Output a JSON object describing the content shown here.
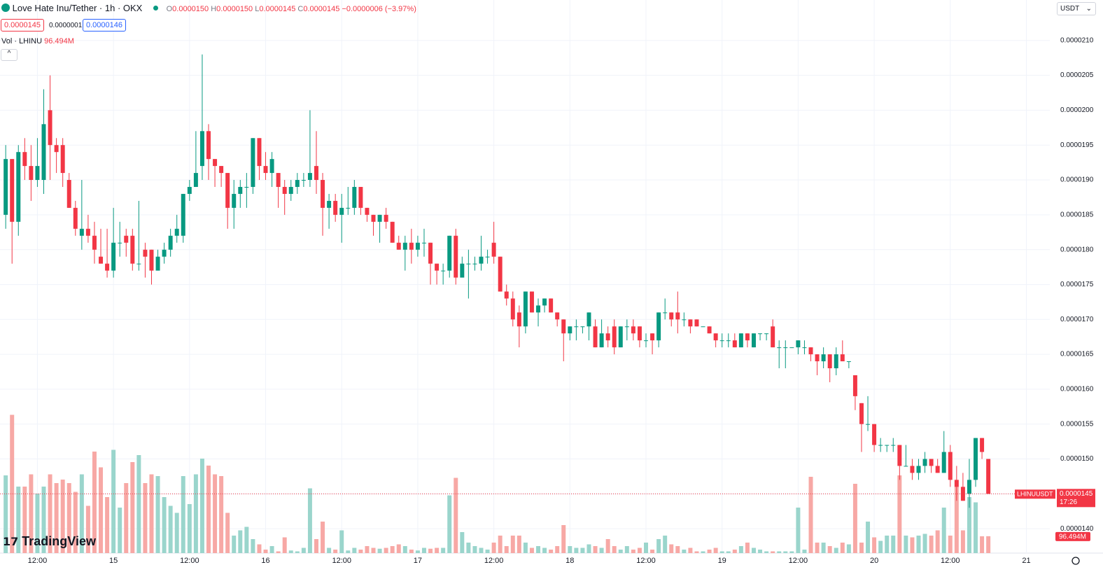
{
  "header": {
    "symbol": "Love Hate Inu/Tether · 1h · OKX",
    "ohlc": [
      {
        "label": "O",
        "value": "0.0000150"
      },
      {
        "label": "H",
        "value": "0.0000150"
      },
      {
        "label": "L",
        "value": "0.0000145"
      },
      {
        "label": "C",
        "value": "0.0000145"
      }
    ],
    "change": "−0.0000006 (−3.97%)",
    "bid": "0.0000145",
    "spread": "0.0000001",
    "ask": "0.0000146",
    "volume_title": "Vol · LHINU",
    "volume_value": "96.494M",
    "currency": "USDT",
    "logo": "TradingView"
  },
  "chart_data": {
    "type": "candlestick",
    "open": [
      1.85e-05,
      1.93e-05,
      1.84e-05,
      1.94e-05,
      1.92e-05,
      1.9e-05,
      1.9e-05,
      2e-05,
      1.95e-05,
      1.95e-05,
      1.9e-05,
      1.86e-05,
      1.82e-05,
      1.83e-05,
      1.82e-05,
      1.79e-05,
      1.78e-05,
      1.77e-05,
      1.81e-05,
      1.82e-05,
      1.82e-05,
      1.78e-05,
      1.8e-05,
      1.8e-05,
      1.77e-05,
      1.79e-05,
      1.8e-05,
      1.82e-05,
      1.82e-05,
      1.88e-05,
      1.89e-05,
      1.92e-05,
      1.97e-05,
      1.93e-05,
      1.92e-05,
      1.91e-05,
      1.86e-05,
      1.88e-05,
      1.89e-05,
      1.89e-05,
      1.96e-05,
      1.92e-05,
      1.91e-05,
      1.91e-05,
      1.89e-05,
      1.88e-05,
      1.89e-05,
      1.9e-05,
      1.9e-05,
      1.92e-05,
      1.9e-05,
      1.86e-05,
      1.87e-05,
      1.85e-05,
      1.86e-05,
      1.86e-05,
      1.89e-05,
      1.86e-05,
      1.85e-05,
      1.84e-05,
      1.85e-05,
      1.84e-05,
      1.81e-05,
      1.8e-05,
      1.81e-05,
      1.8e-05,
      1.81e-05,
      1.81e-05,
      1.78e-05,
      1.77e-05,
      1.77e-05,
      1.82e-05,
      1.76e-05,
      1.78e-05,
      1.78e-05,
      1.78e-05,
      1.79e-05,
      1.81e-05,
      1.79e-05,
      1.74e-05,
      1.73e-05,
      1.71e-05,
      1.69e-05,
      1.74e-05,
      1.71e-05,
      1.72e-05,
      1.73e-05,
      1.71e-05,
      1.7e-05,
      1.68e-05,
      1.69e-05,
      1.69e-05,
      1.69e-05,
      1.69e-05,
      1.66e-05,
      1.68e-05,
      1.69e-05,
      1.66e-05,
      1.69e-05,
      1.69e-05,
      1.69e-05,
      1.67e-05,
      1.68e-05,
      1.67e-05,
      1.71e-05,
      1.71e-05,
      1.71e-05,
      1.7e-05,
      1.7e-05,
      1.7e-05,
      1.69e-05,
      1.69e-05,
      1.68e-05,
      1.67e-05,
      1.67e-05,
      1.67e-05,
      1.66e-05,
      1.68e-05,
      1.66e-05,
      1.68e-05,
      1.68e-05,
      1.69e-05,
      1.66e-05,
      1.66e-05,
      1.66e-05,
      1.66e-05,
      1.66e-05,
      1.66e-05,
      1.65e-05,
      1.64e-05,
      1.65e-05,
      1.63e-05,
      1.65e-05,
      1.64e-05,
      1.62e-05,
      1.58e-05,
      1.55e-05,
      1.55e-05,
      1.52e-05,
      1.52e-05,
      1.52e-05,
      1.52e-05,
      1.49e-05,
      1.49e-05,
      1.48e-05,
      1.49e-05,
      1.5e-05,
      1.49e-05,
      1.48e-05,
      1.51e-05,
      1.47e-05,
      1.46e-05,
      1.45e-05,
      1.47e-05,
      1.53e-05,
      1.5e-05
    ],
    "high": [
      1.95e-05,
      1.93e-05,
      1.95e-05,
      1.96e-05,
      1.95e-05,
      1.96e-05,
      2.03e-05,
      2.05e-05,
      1.96e-05,
      1.96e-05,
      1.91e-05,
      1.87e-05,
      1.9e-05,
      1.85e-05,
      1.84e-05,
      1.83e-05,
      1.83e-05,
      1.86e-05,
      1.84e-05,
      1.83e-05,
      1.83e-05,
      1.87e-05,
      1.81e-05,
      1.8e-05,
      1.8e-05,
      1.81e-05,
      1.83e-05,
      1.85e-05,
      1.88e-05,
      1.9e-05,
      1.97e-05,
      2.08e-05,
      1.98e-05,
      1.93e-05,
      1.92e-05,
      1.91e-05,
      1.9e-05,
      1.9e-05,
      1.91e-05,
      1.96e-05,
      1.96e-05,
      1.94e-05,
      1.94e-05,
      1.91e-05,
      1.9e-05,
      1.9e-05,
      1.91e-05,
      1.91e-05,
      2e-05,
      1.97e-05,
      1.91e-05,
      1.88e-05,
      1.88e-05,
      1.88e-05,
      1.89e-05,
      1.9e-05,
      1.89e-05,
      1.86e-05,
      1.85e-05,
      1.85e-05,
      1.86e-05,
      1.84e-05,
      1.82e-05,
      1.82e-05,
      1.83e-05,
      1.82e-05,
      1.83e-05,
      1.81e-05,
      1.78e-05,
      1.78e-05,
      1.82e-05,
      1.83e-05,
      1.79e-05,
      1.8e-05,
      1.79e-05,
      1.82e-05,
      1.8e-05,
      1.84e-05,
      1.79e-05,
      1.75e-05,
      1.74e-05,
      1.72e-05,
      1.74e-05,
      1.74e-05,
      1.73e-05,
      1.73e-05,
      1.73e-05,
      1.71e-05,
      1.7e-05,
      1.69e-05,
      1.7e-05,
      1.69e-05,
      1.71e-05,
      1.7e-05,
      1.7e-05,
      1.69e-05,
      1.7e-05,
      1.69e-05,
      1.7e-05,
      1.7e-05,
      1.69e-05,
      1.68e-05,
      1.68e-05,
      1.71e-05,
      1.73e-05,
      1.71e-05,
      1.74e-05,
      1.71e-05,
      1.7e-05,
      1.7e-05,
      1.69e-05,
      1.69e-05,
      1.68e-05,
      1.68e-05,
      1.68e-05,
      1.68e-05,
      1.68e-05,
      1.68e-05,
      1.68e-05,
      1.68e-05,
      1.68e-05,
      1.7e-05,
      1.67e-05,
      1.67e-05,
      1.66e-05,
      1.67e-05,
      1.67e-05,
      1.66e-05,
      1.65e-05,
      1.66e-05,
      1.65e-05,
      1.66e-05,
      1.67e-05,
      1.64e-05,
      1.62e-05,
      1.58e-05,
      1.59e-05,
      1.55e-05,
      1.53e-05,
      1.52e-05,
      1.53e-05,
      1.52e-05,
      1.52e-05,
      1.5e-05,
      1.5e-05,
      1.51e-05,
      1.5e-05,
      1.5e-05,
      1.54e-05,
      1.52e-05,
      1.49e-05,
      1.48e-05,
      1.5e-05,
      1.53e-05,
      1.53e-05,
      1.5e-05
    ],
    "low": [
      1.83e-05,
      1.78e-05,
      1.82e-05,
      1.9e-05,
      1.87e-05,
      1.89e-05,
      1.88e-05,
      1.9e-05,
      1.91e-05,
      1.89e-05,
      1.86e-05,
      1.82e-05,
      1.8e-05,
      1.81e-05,
      1.78e-05,
      1.78e-05,
      1.76e-05,
      1.76e-05,
      1.79e-05,
      1.79e-05,
      1.77e-05,
      1.77e-05,
      1.76e-05,
      1.75e-05,
      1.77e-05,
      1.78e-05,
      1.79e-05,
      1.81e-05,
      1.81e-05,
      1.87e-05,
      1.89e-05,
      1.9e-05,
      1.9e-05,
      1.89e-05,
      1.89e-05,
      1.83e-05,
      1.83e-05,
      1.86e-05,
      1.86e-05,
      1.88e-05,
      1.9e-05,
      1.9e-05,
      1.89e-05,
      1.86e-05,
      1.85e-05,
      1.87e-05,
      1.88e-05,
      1.89e-05,
      1.89e-05,
      1.88e-05,
      1.82e-05,
      1.83e-05,
      1.84e-05,
      1.81e-05,
      1.85e-05,
      1.85e-05,
      1.85e-05,
      1.84e-05,
      1.82e-05,
      1.81e-05,
      1.83e-05,
      1.81e-05,
      1.8e-05,
      1.77e-05,
      1.78e-05,
      1.79e-05,
      1.79e-05,
      1.75e-05,
      1.75e-05,
      1.75e-05,
      1.76e-05,
      1.75e-05,
      1.76e-05,
      1.73e-05,
      1.77e-05,
      1.77e-05,
      1.78e-05,
      1.78e-05,
      1.74e-05,
      1.72e-05,
      1.69e-05,
      1.66e-05,
      1.68e-05,
      1.71e-05,
      1.69e-05,
      1.71e-05,
      1.71e-05,
      1.69e-05,
      1.64e-05,
      1.67e-05,
      1.67e-05,
      1.68e-05,
      1.67e-05,
      1.66e-05,
      1.66e-05,
      1.66e-05,
      1.65e-05,
      1.66e-05,
      1.67e-05,
      1.67e-05,
      1.66e-05,
      1.66e-05,
      1.65e-05,
      1.66e-05,
      1.7e-05,
      1.69e-05,
      1.68e-05,
      1.69e-05,
      1.68e-05,
      1.69e-05,
      1.69e-05,
      1.68e-05,
      1.66e-05,
      1.66e-05,
      1.66e-05,
      1.66e-05,
      1.66e-05,
      1.66e-05,
      1.66e-05,
      1.67e-05,
      1.67e-05,
      1.66e-05,
      1.63e-05,
      1.63e-05,
      1.66e-05,
      1.65e-05,
      1.65e-05,
      1.64e-05,
      1.62e-05,
      1.63e-05,
      1.61e-05,
      1.62e-05,
      1.64e-05,
      1.63e-05,
      1.57e-05,
      1.51e-05,
      1.54e-05,
      1.51e-05,
      1.51e-05,
      1.51e-05,
      1.51e-05,
      1.47e-05,
      1.49e-05,
      1.47e-05,
      1.47e-05,
      1.48e-05,
      1.48e-05,
      1.48e-05,
      1.48e-05,
      1.46e-05,
      1.44e-05,
      1.44e-05,
      1.43e-05,
      1.46e-05,
      1.5e-05,
      1.45e-05
    ],
    "close": [
      1.93e-05,
      1.84e-05,
      1.94e-05,
      1.92e-05,
      1.9e-05,
      1.92e-05,
      1.98e-05,
      1.95e-05,
      1.94e-05,
      1.91e-05,
      1.86e-05,
      1.83e-05,
      1.83e-05,
      1.82e-05,
      1.8e-05,
      1.78e-05,
      1.77e-05,
      1.81e-05,
      1.81e-05,
      1.81e-05,
      1.78e-05,
      1.78e-05,
      1.79e-05,
      1.77e-05,
      1.79e-05,
      1.8e-05,
      1.82e-05,
      1.83e-05,
      1.88e-05,
      1.89e-05,
      1.91e-05,
      1.97e-05,
      1.93e-05,
      1.92e-05,
      1.91e-05,
      1.86e-05,
      1.88e-05,
      1.89e-05,
      1.89e-05,
      1.96e-05,
      1.92e-05,
      1.91e-05,
      1.93e-05,
      1.89e-05,
      1.88e-05,
      1.89e-05,
      1.9e-05,
      1.9e-05,
      1.91e-05,
      1.9e-05,
      1.86e-05,
      1.87e-05,
      1.85e-05,
      1.86e-05,
      1.86e-05,
      1.89e-05,
      1.86e-05,
      1.85e-05,
      1.84e-05,
      1.85e-05,
      1.84e-05,
      1.81e-05,
      1.8e-05,
      1.81e-05,
      1.8e-05,
      1.81e-05,
      1.81e-05,
      1.78e-05,
      1.77e-05,
      1.77e-05,
      1.82e-05,
      1.76e-05,
      1.78e-05,
      1.78e-05,
      1.78e-05,
      1.79e-05,
      1.79e-05,
      1.79e-05,
      1.74e-05,
      1.73e-05,
      1.7e-05,
      1.69e-05,
      1.74e-05,
      1.71e-05,
      1.72e-05,
      1.73e-05,
      1.71e-05,
      1.7e-05,
      1.68e-05,
      1.69e-05,
      1.69e-05,
      1.69e-05,
      1.71e-05,
      1.66e-05,
      1.68e-05,
      1.67e-05,
      1.66e-05,
      1.69e-05,
      1.69e-05,
      1.68e-05,
      1.67e-05,
      1.67e-05,
      1.67e-05,
      1.71e-05,
      1.71e-05,
      1.7e-05,
      1.7e-05,
      1.7e-05,
      1.69e-05,
      1.69e-05,
      1.69e-05,
      1.68e-05,
      1.67e-05,
      1.67e-05,
      1.67e-05,
      1.66e-05,
      1.68e-05,
      1.67e-05,
      1.68e-05,
      1.68e-05,
      1.68e-05,
      1.66e-05,
      1.66e-05,
      1.66e-05,
      1.66e-05,
      1.67e-05,
      1.66e-05,
      1.65e-05,
      1.64e-05,
      1.65e-05,
      1.63e-05,
      1.65e-05,
      1.64e-05,
      1.64e-05,
      1.59e-05,
      1.55e-05,
      1.55e-05,
      1.52e-05,
      1.52e-05,
      1.52e-05,
      1.52e-05,
      1.49e-05,
      1.49e-05,
      1.48e-05,
      1.49e-05,
      1.5e-05,
      1.49e-05,
      1.48e-05,
      1.51e-05,
      1.47e-05,
      1.46e-05,
      1.44e-05,
      1.47e-05,
      1.53e-05,
      1.51e-05,
      1.45e-05
    ],
    "volume": [
      444,
      790,
      380,
      380,
      450,
      340,
      380,
      450,
      400,
      420,
      400,
      350,
      450,
      270,
      580,
      490,
      320,
      590,
      260,
      400,
      520,
      560,
      400,
      450,
      440,
      320,
      270,
      230,
      440,
      280,
      450,
      540,
      500,
      450,
      440,
      230,
      100,
      130,
      150,
      80,
      50,
      20,
      40,
      10,
      90,
      15,
      10,
      30,
      370,
      80,
      180,
      30,
      20,
      130,
      15,
      30,
      20,
      40,
      30,
      25,
      30,
      40,
      50,
      40,
      20,
      15,
      30,
      25,
      30,
      30,
      330,
      430,
      120,
      60,
      40,
      30,
      20,
      60,
      100,
      40,
      100,
      100,
      60,
      30,
      40,
      30,
      20,
      40,
      160,
      40,
      30,
      30,
      50,
      40,
      30,
      80,
      40,
      20,
      40,
      20,
      30,
      60,
      20,
      80,
      100,
      50,
      40,
      20,
      30,
      10,
      10,
      20,
      30,
      10,
      10,
      20,
      40,
      60,
      30,
      20,
      10,
      10,
      10,
      10,
      10,
      260,
      20,
      436,
      60,
      60,
      40,
      30,
      60,
      50,
      396,
      60,
      180,
      90,
      70,
      100,
      100,
      444,
      100,
      90,
      100,
      110,
      100,
      130,
      260,
      100,
      380,
      130,
      320,
      290,
      96,
      96.494
    ],
    "up_color": "#089981",
    "down_color": "#f23645",
    "volume_up_color": "#9ad5cc",
    "volume_down_color": "#f7a8a5",
    "ylim": [
      1.365e-05,
      2.158e-05
    ],
    "yticks": [
      {
        "value": 1.4e-05,
        "label": "0.0000140"
      },
      {
        "value": 1.45e-05,
        "label": "0.0000145"
      },
      {
        "value": 1.5e-05,
        "label": "0.0000150"
      },
      {
        "value": 1.55e-05,
        "label": "0.0000155"
      },
      {
        "value": 1.6e-05,
        "label": "0.0000160"
      },
      {
        "value": 1.65e-05,
        "label": "0.0000165"
      },
      {
        "value": 1.7e-05,
        "label": "0.0000170"
      },
      {
        "value": 1.75e-05,
        "label": "0.0000175"
      },
      {
        "value": 1.8e-05,
        "label": "0.0000180"
      },
      {
        "value": 1.85e-05,
        "label": "0.0000185"
      },
      {
        "value": 1.9e-05,
        "label": "0.0000190"
      },
      {
        "value": 1.95e-05,
        "label": "0.0000195"
      },
      {
        "value": 2e-05,
        "label": "0.0000200"
      },
      {
        "value": 2.05e-05,
        "label": "0.0000205"
      },
      {
        "value": 2.1e-05,
        "label": "0.0000210"
      }
    ],
    "xlim": [
      -0.9,
      164.7
    ],
    "xticks": [
      {
        "value": 5,
        "label": "12:00"
      },
      {
        "value": 17,
        "label": "15"
      },
      {
        "value": 29,
        "label": "12:00"
      },
      {
        "value": 41,
        "label": "16"
      },
      {
        "value": 53,
        "label": "12:00"
      },
      {
        "value": 65,
        "label": "17"
      },
      {
        "value": 77,
        "label": "12:00"
      },
      {
        "value": 89,
        "label": "18"
      },
      {
        "value": 101,
        "label": "12:00"
      },
      {
        "value": 113,
        "label": "19"
      },
      {
        "value": 125,
        "label": "12:00"
      },
      {
        "value": 137,
        "label": "20"
      },
      {
        "value": 149,
        "label": "12:00"
      },
      {
        "value": 161,
        "label": "21"
      }
    ],
    "volume_ylim": [
      0,
      3160
    ],
    "grid": true,
    "last_price": {
      "symbol": "LHINUUSDT",
      "price": "0.0000145",
      "countdown": "17:26",
      "volume": "96.494M"
    }
  }
}
